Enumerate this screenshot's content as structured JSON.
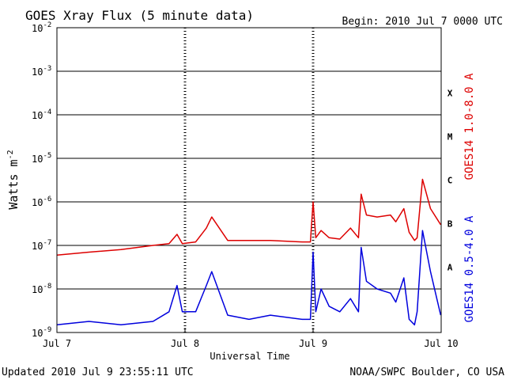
{
  "header": {
    "title": "GOES Xray Flux (5 minute data)",
    "begin": "Begin:  2010 Jul 7 0000 UTC"
  },
  "footer": {
    "updated": "Updated 2010 Jul  9 23:55:11 UTC",
    "credit": "NOAA/SWPC Boulder, CO USA"
  },
  "chart_data": {
    "type": "line",
    "title": "GOES Xray Flux (5 minute data)",
    "xlabel": "Universal Time",
    "ylabel": "Watts m",
    "ylabel_superscript": "-2",
    "yscale": "log",
    "ylim": [
      1e-09,
      0.01
    ],
    "xlim": [
      "2010-07-07T00:00",
      "2010-07-10T00:00"
    ],
    "grid": true,
    "x_ticks": [
      "Jul 7",
      "Jul 8",
      "Jul 9",
      "Jul 10"
    ],
    "y_ticks": [
      {
        "base": "10",
        "exp": "-9"
      },
      {
        "base": "10",
        "exp": "-8"
      },
      {
        "base": "10",
        "exp": "-7"
      },
      {
        "base": "10",
        "exp": "-6"
      },
      {
        "base": "10",
        "exp": "-5"
      },
      {
        "base": "10",
        "exp": "-4"
      },
      {
        "base": "10",
        "exp": "-3"
      },
      {
        "base": "10",
        "exp": "-2"
      }
    ],
    "flare_classes": [
      "A",
      "B",
      "C",
      "M",
      "X"
    ],
    "series": [
      {
        "name": "GOES14 1.0-8.0 A",
        "color": "#dd0000",
        "x": [
          "2010-07-07T00:00",
          "2010-07-07T06:00",
          "2010-07-07T12:00",
          "2010-07-07T18:00",
          "2010-07-07T21:00",
          "2010-07-07T22:30",
          "2010-07-07T23:30",
          "2010-07-08T02:00",
          "2010-07-08T04:00",
          "2010-07-08T05:00",
          "2010-07-08T08:00",
          "2010-07-08T12:00",
          "2010-07-08T16:00",
          "2010-07-08T22:00",
          "2010-07-08T23:30",
          "2010-07-09T00:00",
          "2010-07-09T00:30",
          "2010-07-09T01:30",
          "2010-07-09T03:00",
          "2010-07-09T05:00",
          "2010-07-09T07:00",
          "2010-07-09T08:30",
          "2010-07-09T09:00",
          "2010-07-09T10:00",
          "2010-07-09T12:00",
          "2010-07-09T14:30",
          "2010-07-09T15:30",
          "2010-07-09T17:00",
          "2010-07-09T18:00",
          "2010-07-09T19:00",
          "2010-07-09T19:30",
          "2010-07-09T20:30",
          "2010-07-09T22:00",
          "2010-07-09T23:55"
        ],
        "values": [
          6e-08,
          7e-08,
          8e-08,
          1e-07,
          1.1e-07,
          1.8e-07,
          1.1e-07,
          1.2e-07,
          2.5e-07,
          4.5e-07,
          1.3e-07,
          1.3e-07,
          1.3e-07,
          1.2e-07,
          1.2e-07,
          1e-06,
          1.5e-07,
          2.2e-07,
          1.5e-07,
          1.4e-07,
          2.5e-07,
          1.5e-07,
          1.5e-06,
          5e-07,
          4.5e-07,
          5e-07,
          3.5e-07,
          7e-07,
          2e-07,
          1.3e-07,
          1.5e-07,
          3.3e-06,
          7e-07,
          3e-07
        ]
      },
      {
        "name": "GOES14 0.5-4.0 A",
        "color": "#0000dd",
        "x": [
          "2010-07-07T00:00",
          "2010-07-07T06:00",
          "2010-07-07T12:00",
          "2010-07-07T18:00",
          "2010-07-07T21:00",
          "2010-07-07T22:30",
          "2010-07-07T23:30",
          "2010-07-08T02:00",
          "2010-07-08T04:00",
          "2010-07-08T05:00",
          "2010-07-08T08:00",
          "2010-07-08T12:00",
          "2010-07-08T16:00",
          "2010-07-08T22:00",
          "2010-07-08T23:30",
          "2010-07-09T00:00",
          "2010-07-09T00:30",
          "2010-07-09T01:30",
          "2010-07-09T03:00",
          "2010-07-09T05:00",
          "2010-07-09T07:00",
          "2010-07-09T08:30",
          "2010-07-09T09:00",
          "2010-07-09T10:00",
          "2010-07-09T12:00",
          "2010-07-09T14:30",
          "2010-07-09T15:30",
          "2010-07-09T17:00",
          "2010-07-09T18:00",
          "2010-07-09T19:00",
          "2010-07-09T19:30",
          "2010-07-09T20:30",
          "2010-07-09T22:00",
          "2010-07-09T23:55"
        ],
        "values": [
          1.5e-09,
          1.8e-09,
          1.5e-09,
          1.8e-09,
          3e-09,
          1.2e-08,
          3e-09,
          3e-09,
          1.2e-08,
          2.5e-08,
          2.5e-09,
          2e-09,
          2.5e-09,
          2e-09,
          2e-09,
          7e-08,
          3e-09,
          1e-08,
          4e-09,
          3e-09,
          6e-09,
          3e-09,
          9e-08,
          1.5e-08,
          1e-08,
          8e-09,
          5e-09,
          1.8e-08,
          2e-09,
          1.5e-09,
          3e-09,
          2.2e-07,
          2.5e-08,
          2.5e-09
        ]
      }
    ]
  }
}
